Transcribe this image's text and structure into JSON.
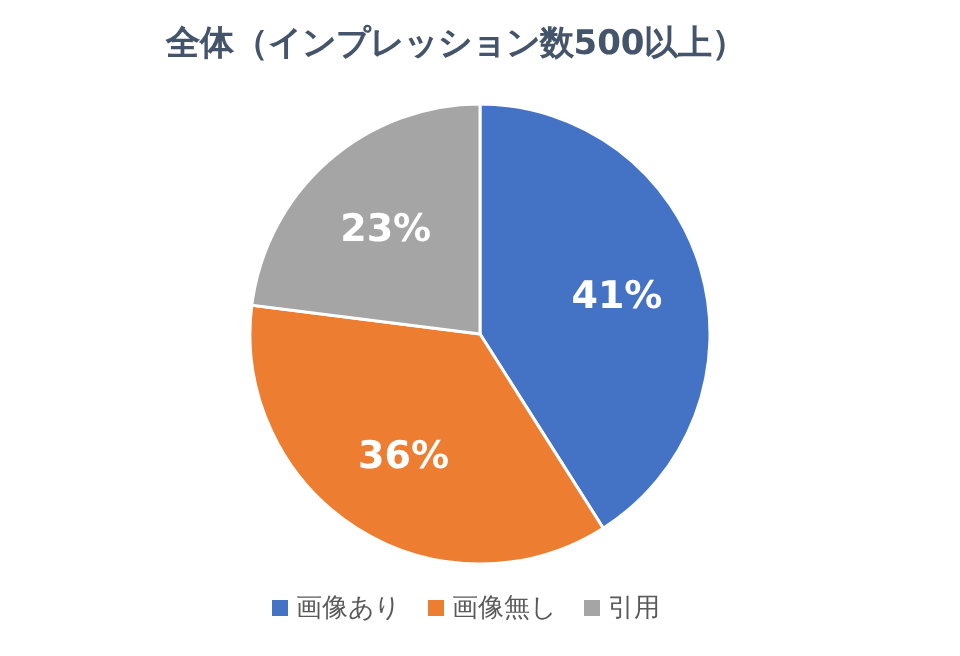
{
  "chart_data": {
    "type": "pie",
    "title": "全体（インプレッション数500以上）",
    "categories": [
      "画像あり",
      "画像無し",
      "引用"
    ],
    "values": [
      41,
      36,
      23
    ],
    "colors": [
      "#4472c4",
      "#ed7d31",
      "#a5a5a5"
    ],
    "value_labels": [
      "41%",
      "36%",
      "23%"
    ],
    "legend": "bottom"
  }
}
